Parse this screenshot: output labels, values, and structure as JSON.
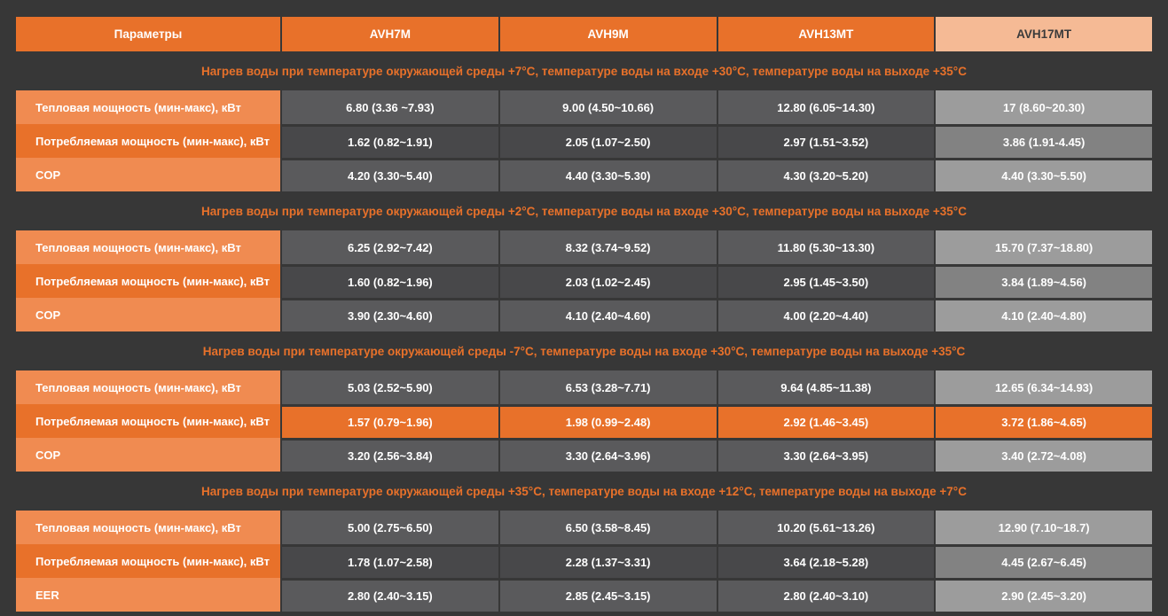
{
  "colors": {
    "background": "#373737",
    "accent_orange": "#e8712a",
    "light_orange": "#f08b51",
    "peach_highlight": "#f5ba95",
    "value_gray": "#5a5a5c",
    "value_gray_alt": "#48484a",
    "last_col_gray": "#9c9c9c",
    "last_col_gray_alt": "#828282"
  },
  "table": {
    "header": {
      "params_label": "Параметры",
      "models": [
        "AVH7M",
        "AVH9M",
        "AVH13MT",
        "AVH17MT"
      ]
    },
    "sections": [
      {
        "title": "Нагрев воды при температуре окружающей среды +7°C, температуре воды на входе +30°C, температуре воды на выходе +35°C",
        "rows": [
          {
            "label": "Тепловая мощность (мин-макс), кВт",
            "highlight": false,
            "values": [
              "6.80 (3.36 ~7.93)",
              "9.00 (4.50~10.66)",
              "12.80 (6.05~14.30)",
              "17 (8.60~20.30)"
            ]
          },
          {
            "label": "Потребляемая мощность (мин-макс), кВт",
            "highlight": false,
            "values": [
              "1.62 (0.82~1.91)",
              "2.05 (1.07~2.50)",
              "2.97 (1.51~3.52)",
              "3.86 (1.91-4.45)"
            ]
          },
          {
            "label": "COP",
            "highlight": false,
            "values": [
              "4.20 (3.30~5.40)",
              "4.40 (3.30~5.30)",
              "4.30 (3.20~5.20)",
              "4.40 (3.30~5.50)"
            ]
          }
        ]
      },
      {
        "title": "Нагрев воды при температуре окружающей среды +2°C, температуре воды на входе +30°C, температуре воды на выходе +35°C",
        "rows": [
          {
            "label": "Тепловая мощность (мин-макс), кВт",
            "highlight": false,
            "values": [
              "6.25 (2.92~7.42)",
              "8.32 (3.74~9.52)",
              "11.80 (5.30~13.30)",
              "15.70 (7.37~18.80)"
            ]
          },
          {
            "label": "Потребляемая мощность (мин-макс), кВт",
            "highlight": false,
            "values": [
              "1.60 (0.82~1.96)",
              "2.03 (1.02~2.45)",
              "2.95 (1.45~3.50)",
              "3.84 (1.89~4.56)"
            ]
          },
          {
            "label": "COP",
            "highlight": false,
            "values": [
              "3.90 (2.30~4.60)",
              "4.10 (2.40~4.60)",
              "4.00 (2.20~4.40)",
              "4.10 (2.40~4.80)"
            ]
          }
        ]
      },
      {
        "title": "Нагрев воды при температуре окружающей среды -7°C, температуре воды на входе +30°C, температуре воды на выходе +35°C",
        "rows": [
          {
            "label": "Тепловая мощность (мин-макс), кВт",
            "highlight": false,
            "values": [
              "5.03 (2.52~5.90)",
              "6.53 (3.28~7.71)",
              "9.64 (4.85~11.38)",
              "12.65 (6.34~14.93)"
            ]
          },
          {
            "label": "Потребляемая мощность (мин-макс), кВт",
            "highlight": true,
            "values": [
              "1.57 (0.79~1.96)",
              "1.98 (0.99~2.48)",
              "2.92 (1.46~3.45)",
              "3.72 (1.86~4.65)"
            ]
          },
          {
            "label": "COP",
            "highlight": false,
            "values": [
              "3.20 (2.56~3.84)",
              "3.30 (2.64~3.96)",
              "3.30 (2.64~3.95)",
              "3.40 (2.72~4.08)"
            ]
          }
        ]
      },
      {
        "title": "Нагрев воды при температуре окружающей среды +35°C, температуре воды на входе +12°C, температуре воды на выходе +7°C",
        "rows": [
          {
            "label": "Тепловая мощность (мин-макс), кВт",
            "highlight": false,
            "values": [
              "5.00 (2.75~6.50)",
              "6.50 (3.58~8.45)",
              "10.20 (5.61~13.26)",
              "12.90 (7.10~18.7)"
            ]
          },
          {
            "label": "Потребляемая мощность (мин-макс), кВт",
            "highlight": false,
            "values": [
              "1.78 (1.07~2.58)",
              "2.28 (1.37~3.31)",
              "3.64 (2.18~5.28)",
              "4.45 (2.67~6.45)"
            ]
          },
          {
            "label": "EER",
            "highlight": false,
            "values": [
              "2.80 (2.40~3.15)",
              "2.85 (2.45~3.15)",
              "2.80 (2.40~3.10)",
              "2.90 (2.45~3.20)"
            ]
          }
        ]
      }
    ]
  }
}
